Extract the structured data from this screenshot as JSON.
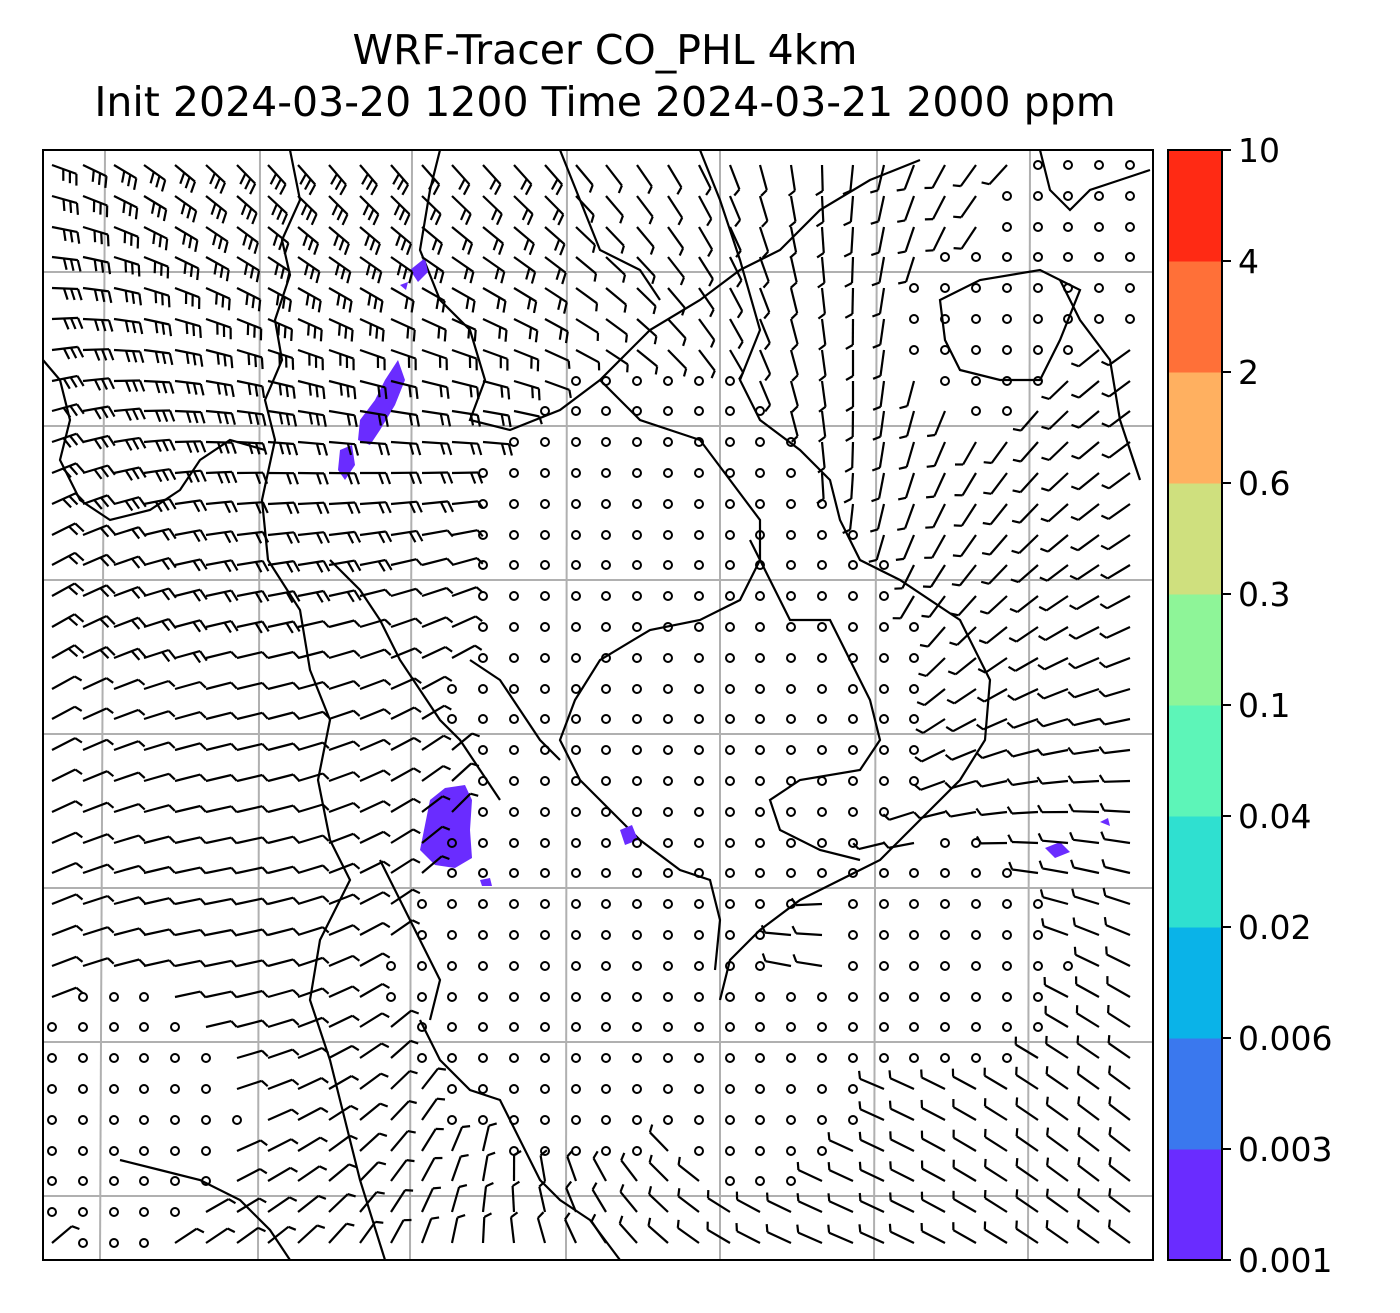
{
  "title": {
    "line1": "WRF-Tracer CO_PHL 4km",
    "line2": "Init 2024-03-20 1200 Time 2024-03-21 2000 ppm"
  },
  "colorbar": {
    "levels": [
      "0.001",
      "0.003",
      "0.006",
      "0.02",
      "0.04",
      "0.1",
      "0.3",
      "0.6",
      "2",
      "4",
      "10"
    ],
    "colors": [
      "#6a2cff",
      "#3a78ee",
      "#0ab3e8",
      "#2fe0d0",
      "#5df5b8",
      "#8ef598",
      "#cfe07e",
      "#ffb060",
      "#ff7038",
      "#ff2a14"
    ]
  },
  "map": {
    "grid_lines": "on",
    "wind_barbs": "on",
    "coastlines": "on",
    "tracer_color": "#6a2cff"
  }
}
